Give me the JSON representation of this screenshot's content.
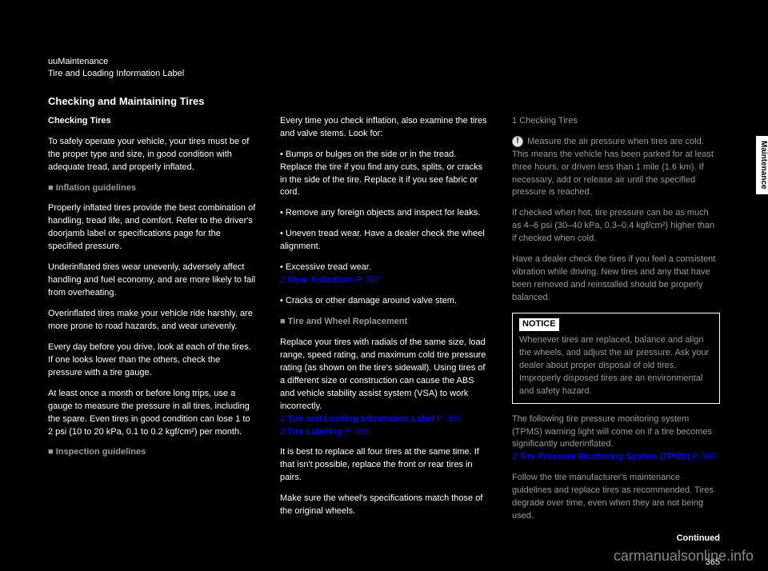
{
  "header": {
    "line1": "uuMaintenance",
    "line2": "Tire and Loading Information Label"
  },
  "section_title": "Checking and Maintaining Tires",
  "left": {
    "heading1": "Checking Tires",
    "body1": "To safely operate your vehicle, your tires must be of the proper type and size, in good condition with adequate tread, and properly inflated.",
    "heading2_icon": "■",
    "heading2": "Inflation guidelines",
    "body2a": "Properly inflated tires provide the best combination of handling, tread life, and comfort. Refer to the driver's doorjamb label or specifications page for the specified pressure.",
    "body2b": "Underinflated tires wear unevenly, adversely affect handling and fuel economy, and are more likely to fail from overheating.",
    "body2c": "Overinflated tires make your vehicle ride harshly, are more prone to road hazards, and wear unevenly.",
    "body2d": "Every day before you drive, look at each of the tires. If one looks lower than the others, check the pressure with a tire gauge.",
    "body2e": "At least once a month or before long trips, use a gauge to measure the pressure in all tires, including the spare. Even tires in good condition can lose 1 to 2 psi (10 to 20 kPa, 0.1 to 0.2 kgf/cm²) per month.",
    "heading3_icon": "■",
    "heading3": "Inspection guidelines"
  },
  "middle": {
    "para1_pre": "Every time you check inflation, also examine the tires and valve stems. Look for:",
    "bullets": [
      "Bumps or bulges on the side or in the tread. Replace the tire if you find any cuts, splits, or cracks in the side of the tire. Replace it if you see fabric or cord.",
      "Remove any foreign objects and inspect for leaks.",
      "Uneven tread wear. Have a dealer check the wheel alignment.",
      "Excessive tread wear."
    ],
    "xref1_text": "Wear Indicators",
    "xref1_page": "P. 367",
    "bullet5": "Cracks or other damage around valve stem.",
    "heading4_icon": "■",
    "heading4": "Tire and Wheel Replacement",
    "para4a_pre": "Replace your tires with radials of the same size, load range, speed rating, and maximum cold tire pressure rating (as shown on the tire's sidewall). Using tires of a different size or construction can cause the ABS and vehicle stability assist system (VSA) to work incorrectly.",
    "xref2_text": "Tire and Loading Information Label",
    "xref2_page": "P. 366",
    "xref3_text": "Tire Labeling",
    "xref3_page": "P. 368",
    "para4b": "It is best to replace all four tires at the same time. If that isn't possible, replace the front or rear tires in pairs.",
    "para4c": "Make sure the wheel's specifications match those of the original wheels."
  },
  "right": {
    "sidebar_prefix": "1",
    "sidebar_title": "Checking Tires",
    "sidebar_body1_pre": "Measure the air pressure when tires are cold. This means the vehicle has been parked for at least three hours, or driven less than 1 mile (1.6 km). If necessary, add or release air until the specified pressure is reached.",
    "sidebar_body1b": "If checked when hot, tire pressure can be as much as 4–6 psi (30–40 kPa, 0.3–0.4 kgf/cm²) higher than if checked when cold.",
    "sidebar_body2": "Have a dealer check the tires if you feel a consistent vibration while driving. New tires and any that have been removed and reinstalled should be properly balanced.",
    "notice_label": "NOTICE",
    "notice_body": "Whenever tires are replaced, balance and align the wheels, and adjust the air pressure. Ask your dealer about proper disposal of old tires. Improperly disposed tires are an environmental and safety hazard.",
    "footnote_pre": "The following tire pressure monitoring system (TPMS) warning light will come on if a tire becomes significantly underinflated.",
    "xref4_text": "Tire Pressure Monitoring System (TPMS)",
    "xref4_page": "P. 307",
    "footnote2": "Follow the tire manufacturer's maintenance guidelines and replace tires as recommended. Tires degrade over time, even when they are not being used."
  },
  "continued": "Continued",
  "page_number": "365",
  "side_label": "Maintenance",
  "watermark": "carmanualsonline.info",
  "style": {
    "background": "#000000",
    "text": "#ffffff",
    "link": "#0000ff",
    "gray": "#9a9a9a",
    "body_fontsize": 11,
    "title_fontsize": 13
  }
}
